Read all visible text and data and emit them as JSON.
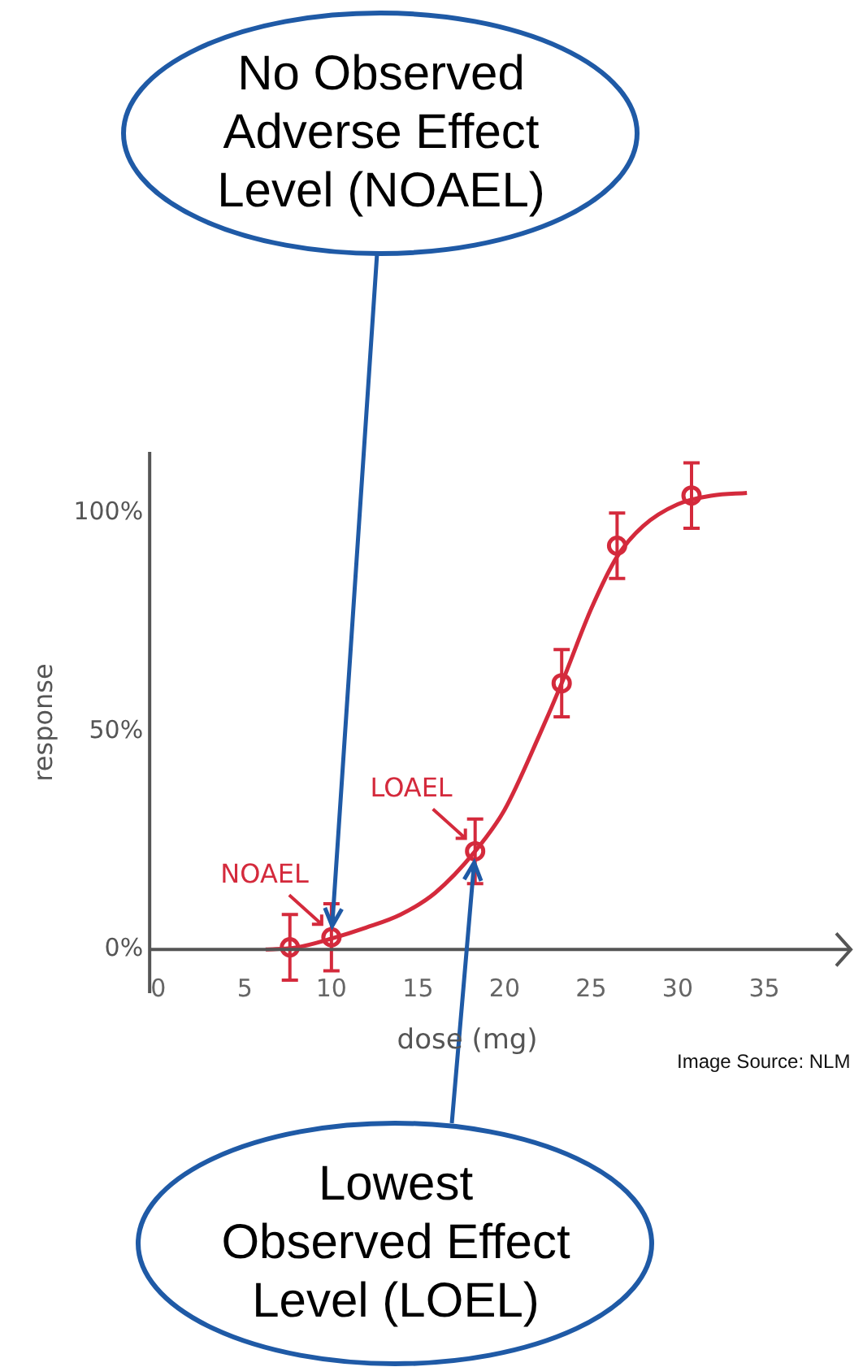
{
  "chart_data": {
    "type": "scatter",
    "xlabel": "dose (mg)",
    "ylabel": "response",
    "xlim": [
      -0.5,
      40
    ],
    "xticks": [
      0,
      5,
      10,
      15,
      20,
      25,
      30,
      35
    ],
    "ylim": [
      -10,
      114
    ],
    "yticks": [
      {
        "value": 0,
        "label": "0%"
      },
      {
        "value": 50,
        "label": "50%"
      },
      {
        "value": 100,
        "label": "100%"
      }
    ],
    "grid": false,
    "legend": false,
    "marker": "circle",
    "series": [
      {
        "type": "line",
        "color": "#d42a3c",
        "marker": "none",
        "x": [
          6.2,
          8,
          10,
          12,
          14,
          16,
          18.3,
          20,
          22,
          23.3,
          25,
          26.5,
          28,
          30,
          32,
          34
        ],
        "values": [
          0,
          0.5,
          2.5,
          5,
          8,
          13,
          22.5,
          32,
          49,
          61,
          78,
          90,
          97,
          102,
          104,
          104.6
        ]
      },
      {
        "color": "#d42a3c",
        "x": [
          7.6,
          10,
          18.3,
          23.3,
          26.5,
          30.8
        ],
        "values": [
          0.5,
          2.8,
          22.5,
          61,
          92.5,
          104
        ],
        "errors": [
          7.5,
          7.7,
          7.4,
          7.7,
          7.5,
          7.5
        ]
      }
    ],
    "annotations": [
      "NOAEL",
      "LOAEL",
      {
        "text": "No Observed Adverse Effect Level (NOAEL)",
        "x": 10,
        "y": 2.8
      },
      {
        "text": "Lowest Observed Effect Level (LOEL)",
        "x": 18.3,
        "y": 22.5
      },
      "Image Source: NLM"
    ]
  }
}
